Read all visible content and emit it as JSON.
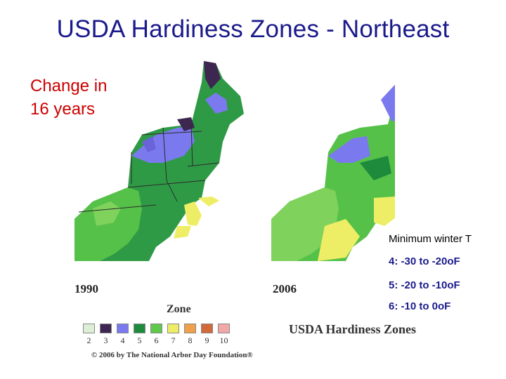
{
  "title": "USDA Hardiness Zones - Northeast",
  "subtitle_line1": "Change in",
  "subtitle_line2": "16 years",
  "maps": [
    {
      "year": "1990"
    },
    {
      "year": "2006"
    }
  ],
  "legend": {
    "heading": "Minimum winter T",
    "rows": [
      {
        "text": "4: -30 to -20oF"
      },
      {
        "text": "5: -20 to -10oF"
      },
      {
        "text": "6: -10 to 0oF"
      }
    ]
  },
  "zone_label": "Zone",
  "zone_scale": [
    {
      "zone": "2",
      "color": "#dcefd6"
    },
    {
      "zone": "3",
      "color": "#3d2650"
    },
    {
      "zone": "4",
      "color": "#7b79ee"
    },
    {
      "zone": "5",
      "color": "#1e8a3c"
    },
    {
      "zone": "6",
      "color": "#5ec94a"
    },
    {
      "zone": "7",
      "color": "#eeee66"
    },
    {
      "zone": "8",
      "color": "#f0a04a"
    },
    {
      "zone": "9",
      "color": "#d2693a"
    },
    {
      "zone": "10",
      "color": "#f3a8a8"
    }
  ],
  "brand_text": "USDA Hardiness Zones",
  "copyright": "© 2006 by The National Arbor Day Foundation®"
}
